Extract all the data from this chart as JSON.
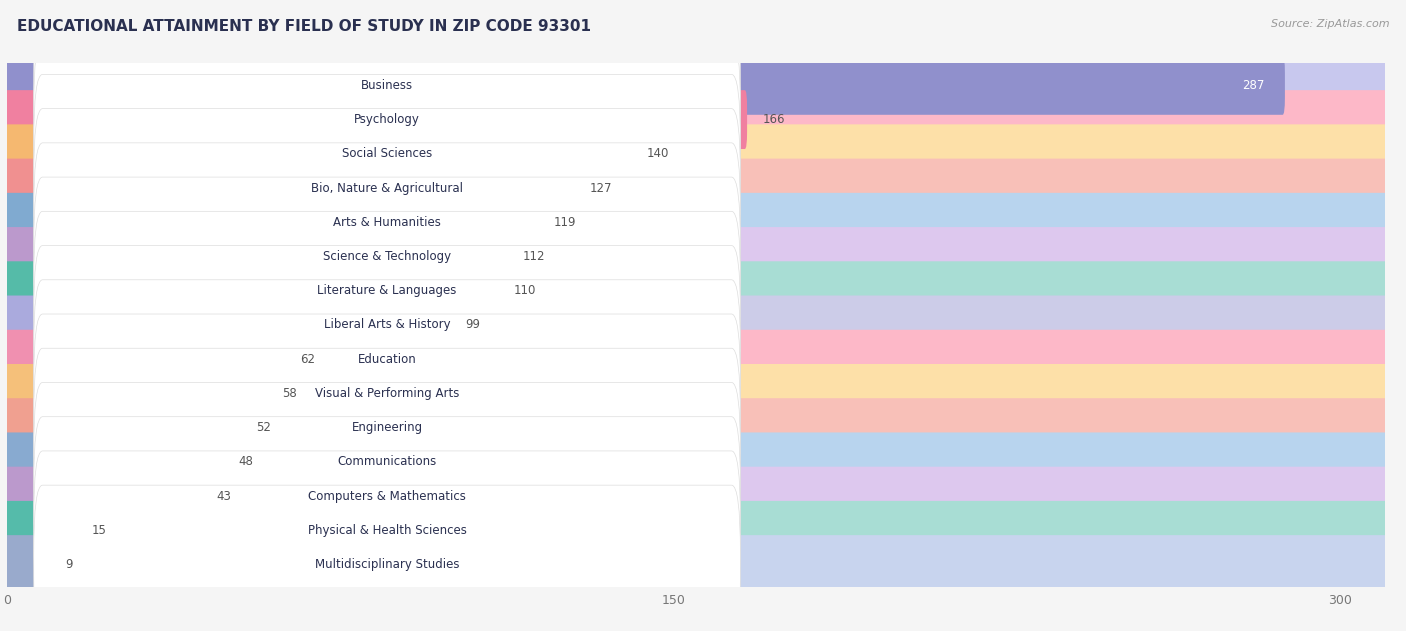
{
  "title": "EDUCATIONAL ATTAINMENT BY FIELD OF STUDY IN ZIP CODE 93301",
  "source": "Source: ZipAtlas.com",
  "categories": [
    "Business",
    "Psychology",
    "Social Sciences",
    "Bio, Nature & Agricultural",
    "Arts & Humanities",
    "Science & Technology",
    "Literature & Languages",
    "Liberal Arts & History",
    "Education",
    "Visual & Performing Arts",
    "Engineering",
    "Communications",
    "Computers & Mathematics",
    "Physical & Health Sciences",
    "Multidisciplinary Studies"
  ],
  "values": [
    287,
    166,
    140,
    127,
    119,
    112,
    110,
    99,
    62,
    58,
    52,
    48,
    43,
    15,
    9
  ],
  "bar_colors": [
    "#9090cc",
    "#f080a0",
    "#f5b870",
    "#f09090",
    "#80aad0",
    "#bb99cc",
    "#55bba8",
    "#aaaadd",
    "#f090b0",
    "#f5c07a",
    "#f0a090",
    "#88aad0",
    "#bb99cc",
    "#55bbaa",
    "#99aacc"
  ],
  "bar_bg_colors": [
    "#c8c8ee",
    "#fdb8c8",
    "#fde0a8",
    "#f8c0b8",
    "#b8d4ee",
    "#ddc8ee",
    "#a8ddd4",
    "#cccce8",
    "#fdb8c8",
    "#fde0a8",
    "#f8c0b8",
    "#b8d4ee",
    "#ddc8ee",
    "#a8ddd4",
    "#c8d4ee"
  ],
  "xlim": [
    0,
    310
  ],
  "xticks": [
    0,
    150,
    300
  ],
  "background_color": "#f5f5f5",
  "row_bg_color": "#ffffff",
  "title_fontsize": 11,
  "source_fontsize": 8,
  "label_fontsize": 8.5,
  "value_fontsize": 8.5
}
